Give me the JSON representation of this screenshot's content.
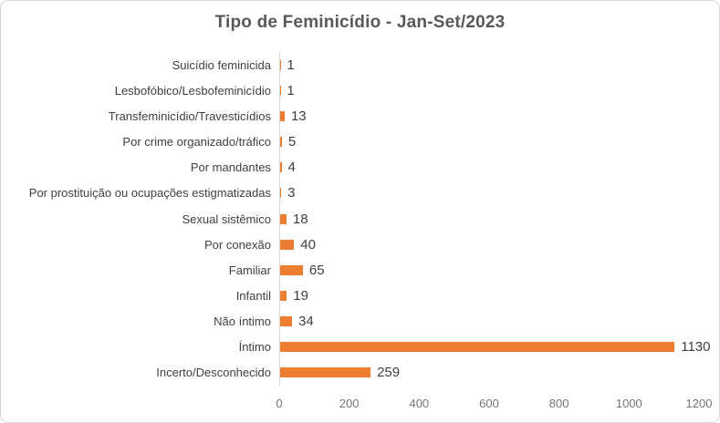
{
  "chart_data": {
    "type": "bar",
    "orientation": "horizontal",
    "title": "Tipo de Feminicídio - Jan-Set/2023",
    "categories": [
      "Suicídio feminicida",
      "Lesbofóbico/Lesbofeminicídio",
      "Transfeminicídio/Travesticídios",
      "Por crime organizado/tráfico",
      "Por mandantes",
      "Por prostituição ou ocupações estigmatizadas",
      "Sexual sistêmico",
      "Por conexão",
      "Familiar",
      "Infantil",
      "Não íntimo",
      "Íntimo",
      "Incerto/Desconhecido"
    ],
    "values": [
      1,
      1,
      13,
      5,
      4,
      3,
      18,
      40,
      65,
      19,
      34,
      1130,
      259
    ],
    "xlabel": "",
    "ylabel": "",
    "xlim": [
      0,
      1200
    ],
    "x_ticks": [
      0,
      200,
      400,
      600,
      800,
      1000,
      1200
    ],
    "grid": false,
    "legend": false,
    "data_labels": true
  },
  "colors": {
    "bar": "#ED7D31",
    "title": "#595959",
    "label": "#3F3F3F",
    "tick": "#757575",
    "axis_line": "#D9D9D9",
    "border": "#D7D7D7",
    "background": "#FFFFFF"
  }
}
